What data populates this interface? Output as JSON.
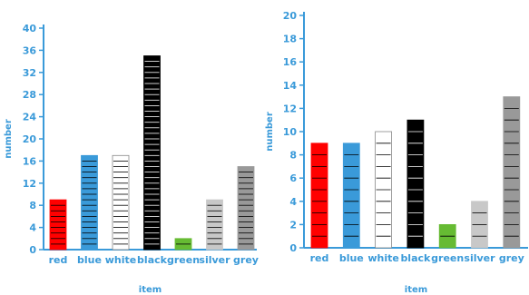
{
  "chart_data": [
    {
      "type": "bar",
      "xlabel": "item",
      "ylabel": "number",
      "ylim": [
        0,
        40
      ],
      "yticks": [
        0,
        4,
        8,
        12,
        16,
        20,
        24,
        28,
        32,
        36,
        40
      ],
      "categories": [
        "red",
        "blue",
        "white",
        "black",
        "green",
        "silver",
        "grey"
      ],
      "values": [
        9,
        17,
        17,
        35,
        2,
        9,
        15
      ],
      "bar_colors": [
        "#ff0000",
        "#3a9ad9",
        "#ffffff",
        "#000000",
        "#66bb33",
        "#c8c8c8",
        "#999999"
      ],
      "grid": false
    },
    {
      "type": "bar",
      "xlabel": "item",
      "ylabel": "number",
      "ylim": [
        0,
        20
      ],
      "yticks": [
        0,
        2,
        4,
        6,
        8,
        10,
        12,
        14,
        16,
        18,
        20
      ],
      "categories": [
        "red",
        "blue",
        "white",
        "black",
        "green",
        "silver",
        "grey"
      ],
      "values": [
        9,
        9,
        10,
        11,
        2,
        4,
        13
      ],
      "bar_colors": [
        "#ff0000",
        "#3a9ad9",
        "#ffffff",
        "#000000",
        "#66bb33",
        "#c8c8c8",
        "#999999"
      ],
      "grid": false
    }
  ]
}
